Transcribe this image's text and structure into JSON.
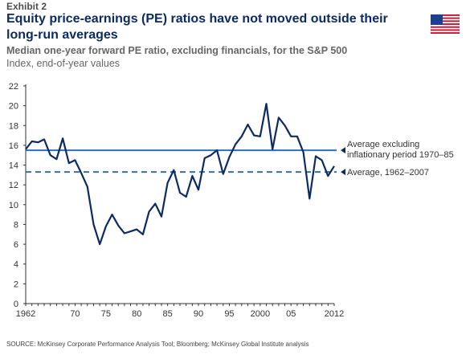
{
  "header": {
    "exhibit": "Exhibit 2",
    "title": "Equity price-earnings (PE) ratios have not moved outside their long-run averages",
    "subtitle": "Median one-year forward PE ratio, excluding financials, for the S&P 500",
    "subtitle2": "Index, end-of-year values"
  },
  "flag_icon": "us-flag-icon",
  "source": "SOURCE: McKinsey Corporate Performance Analysis Tool; Bloomberg; McKinsey Global Institute analysis",
  "colors": {
    "line": "#0b2a66",
    "reference": "#2e6fb8",
    "title": "#0b2a66"
  },
  "chart_data": {
    "type": "line",
    "xlabel": "",
    "ylabel": "",
    "ylim": [
      0,
      22
    ],
    "yticks": [
      0,
      2,
      4,
      6,
      8,
      10,
      12,
      14,
      16,
      18,
      20,
      22
    ],
    "xlim": [
      1962,
      2012
    ],
    "xtick_labels": [
      {
        "x": 1962,
        "label": "1962"
      },
      {
        "x": 1970,
        "label": "70"
      },
      {
        "x": 1975,
        "label": "75"
      },
      {
        "x": 1980,
        "label": "80"
      },
      {
        "x": 1985,
        "label": "85"
      },
      {
        "x": 1990,
        "label": "90"
      },
      {
        "x": 1995,
        "label": "95"
      },
      {
        "x": 2000,
        "label": "2000"
      },
      {
        "x": 2005,
        "label": "05"
      },
      {
        "x": 2012,
        "label": "2012"
      }
    ],
    "grid": false,
    "series": [
      {
        "x": [
          1962,
          1963,
          1964,
          1965,
          1966,
          1967,
          1968,
          1969,
          1970,
          1971,
          1972,
          1973,
          1974,
          1975,
          1976,
          1977,
          1978,
          1979,
          1980,
          1981,
          1982,
          1983,
          1984,
          1985,
          1986,
          1987,
          1988,
          1989,
          1990,
          1991,
          1992,
          1993,
          1994,
          1995,
          1996,
          1997,
          1998,
          1999,
          2000,
          2001,
          2002,
          2003,
          2004,
          2005,
          2006,
          2007,
          2008,
          2009,
          2010,
          2011,
          2012
        ],
        "values": [
          15.6,
          16.4,
          16.3,
          16.6,
          15.0,
          14.6,
          16.7,
          14.2,
          14.5,
          13.2,
          11.8,
          8.0,
          6.0,
          7.8,
          9.0,
          7.9,
          7.1,
          7.3,
          7.5,
          7.0,
          9.3,
          10.1,
          8.8,
          12.2,
          13.5,
          11.2,
          10.8,
          12.9,
          11.5,
          14.7,
          15.0,
          15.5,
          13.1,
          14.8,
          16.1,
          16.9,
          18.1,
          17.0,
          16.9,
          20.2,
          15.6,
          18.8,
          18.0,
          16.9,
          16.9,
          15.3,
          10.6,
          14.9,
          14.5,
          12.9,
          13.9
        ]
      }
    ],
    "reference_lines": [
      {
        "value": 15.5,
        "style": "solid",
        "label_line1": "Average excluding",
        "label_line2": "inflationary period 1970–85"
      },
      {
        "value": 13.3,
        "style": "dashed",
        "label_line1": "Average, 1962–2007"
      }
    ]
  }
}
